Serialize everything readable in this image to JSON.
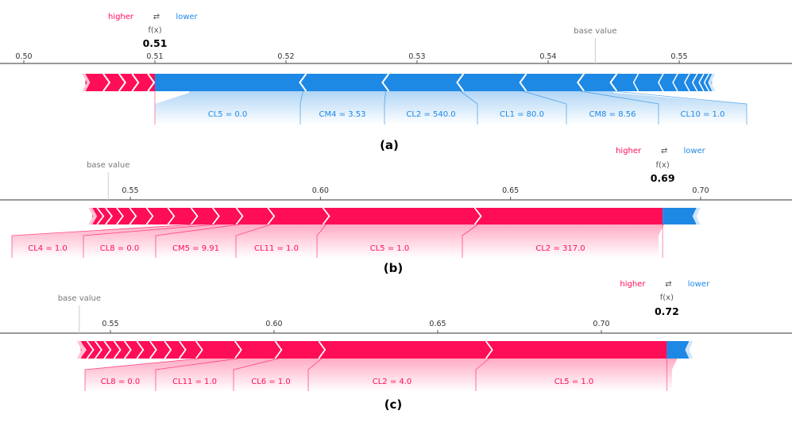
{
  "legend": {
    "higher": "higher",
    "lower": "lower",
    "arrow": "⇄"
  },
  "colors": {
    "positive": "#ff0d57",
    "negative": "#1e88e5",
    "arrow_light": "#ffc3d5",
    "arrow_light_blue": "#d1e6fa"
  },
  "fx_label": "f(x)",
  "base_label": "base value",
  "chart_data": [
    {
      "type": "force",
      "caption": "(a)",
      "fx": 0.51,
      "base_value": 0.5436,
      "ticks": [
        "0.50",
        "0.51",
        "0.52",
        "0.53",
        "0.54",
        "0.55"
      ],
      "x_range": [
        0.4983,
        0.556
      ],
      "features": [
        {
          "label": "CL5 = 0.0",
          "start": 0.5126,
          "end": 0.5213,
          "sign": "neg"
        },
        {
          "label": "CM4 = 3.53",
          "start": 0.5213,
          "end": 0.5276,
          "sign": "neg"
        },
        {
          "label": "CL2 = 540.0",
          "start": 0.5276,
          "end": 0.5333,
          "sign": "neg"
        },
        {
          "label": "CL1 = 80.0",
          "start": 0.5333,
          "end": 0.5381,
          "sign": "neg"
        },
        {
          "label": "CM8 = 8.56",
          "start": 0.5381,
          "end": 0.5425,
          "sign": "neg"
        },
        {
          "label": "CL10 = 1.0",
          "start": 0.5425,
          "end": 0.545,
          "sign": "neg"
        }
      ],
      "small_neg": [
        0.5467,
        0.5486,
        0.5497,
        0.5506,
        0.5512,
        0.5517,
        0.5521,
        0.5525
      ],
      "pos_segments": [
        0.5047,
        0.5063,
        0.5075,
        0.5085,
        0.5097,
        0.5111
      ]
    },
    {
      "type": "force",
      "caption": "(b)",
      "fx": 0.69,
      "base_value": 0.5442,
      "ticks": [
        "0.55",
        "0.60",
        "0.65",
        "0.70"
      ],
      "x_range": [
        0.5148,
        0.7244
      ],
      "features": [
        {
          "label": "CL2 = 317.0",
          "start": 0.6904,
          "end": 0.6414,
          "sign": "pos"
        },
        {
          "label": "CL5 = 1.0",
          "start": 0.6414,
          "end": 0.6015,
          "sign": "pos"
        },
        {
          "label": "CL11 = 1.0",
          "start": 0.6015,
          "end": 0.587,
          "sign": "pos"
        },
        {
          "label": "CM5 = 9.91",
          "start": 0.587,
          "end": 0.5787,
          "sign": "pos"
        },
        {
          "label": "CL8 = 0.0",
          "start": 0.5787,
          "end": 0.5725,
          "sign": "pos"
        },
        {
          "label": "CL4 = 1.0",
          "start": 0.5725,
          "end": 0.5668,
          "sign": "pos"
        }
      ],
      "small_pos": [
        0.5607,
        0.5555,
        0.5515,
        0.5485,
        0.546,
        0.5442
      ],
      "neg_end": 0.6989
    },
    {
      "type": "force",
      "caption": "(c)",
      "fx": 0.72,
      "base_value": 0.5405,
      "ticks": [
        "0.55",
        "0.60",
        "0.65",
        "0.70"
      ],
      "x_range": [
        0.5195,
        0.7564
      ],
      "features": [
        {
          "label": "CL5 = 1.0",
          "start": 0.7232,
          "end": 0.6657,
          "sign": "pos"
        },
        {
          "label": "CL2 = 4.0",
          "start": 0.6657,
          "end": 0.6146,
          "sign": "pos"
        },
        {
          "label": "CL6 = 1.0",
          "start": 0.6146,
          "end": 0.6013,
          "sign": "pos"
        },
        {
          "label": "CL11 = 1.0",
          "start": 0.6013,
          "end": 0.589,
          "sign": "pos"
        },
        {
          "label": "CL8 = 0.0",
          "start": 0.589,
          "end": 0.5771,
          "sign": "pos"
        }
      ],
      "small_pos": [
        0.572,
        0.568,
        0.564,
        0.5605,
        0.5572,
        0.5545,
        0.552,
        0.5497,
        0.5477,
        0.5458
      ],
      "neg_end": 0.7268
    }
  ]
}
